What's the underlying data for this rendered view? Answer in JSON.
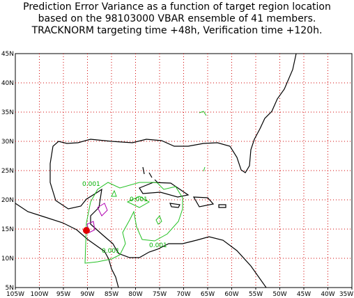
{
  "title_lines": [
    "Prediction Error Variance as a function of target region location",
    "based on the 98103000 VBAR ensemble of 41 members.",
    "TRACKNORM targeting time +48h, Verification time +120h."
  ],
  "lon_ticks": [
    {
      "value": -105,
      "label": "105W"
    },
    {
      "value": -100,
      "label": "100W"
    },
    {
      "value": -95,
      "label": "95W"
    },
    {
      "value": -90,
      "label": "90W"
    },
    {
      "value": -85,
      "label": "85W"
    },
    {
      "value": -80,
      "label": "80W"
    },
    {
      "value": -75,
      "label": "75W"
    },
    {
      "value": -70,
      "label": "70W"
    },
    {
      "value": -65,
      "label": "65W"
    },
    {
      "value": -60,
      "label": "60W"
    },
    {
      "value": -55,
      "label": "55W"
    },
    {
      "value": -50,
      "label": "50W"
    },
    {
      "value": -45,
      "label": "45W"
    },
    {
      "value": -40,
      "label": "40W"
    },
    {
      "value": -35,
      "label": "35W"
    }
  ],
  "lat_ticks": [
    {
      "value": 5,
      "label": "5N"
    },
    {
      "value": 10,
      "label": "10N"
    },
    {
      "value": 15,
      "label": "15N"
    },
    {
      "value": 20,
      "label": "20N"
    },
    {
      "value": 25,
      "label": "25N"
    },
    {
      "value": 30,
      "label": "30N"
    },
    {
      "value": 35,
      "label": "35N"
    },
    {
      "value": 40,
      "label": "40N"
    },
    {
      "value": 45,
      "label": "45N"
    }
  ],
  "contour_labels": [
    "0.001",
    "0.001",
    "0.001",
    "0.001"
  ]
}
